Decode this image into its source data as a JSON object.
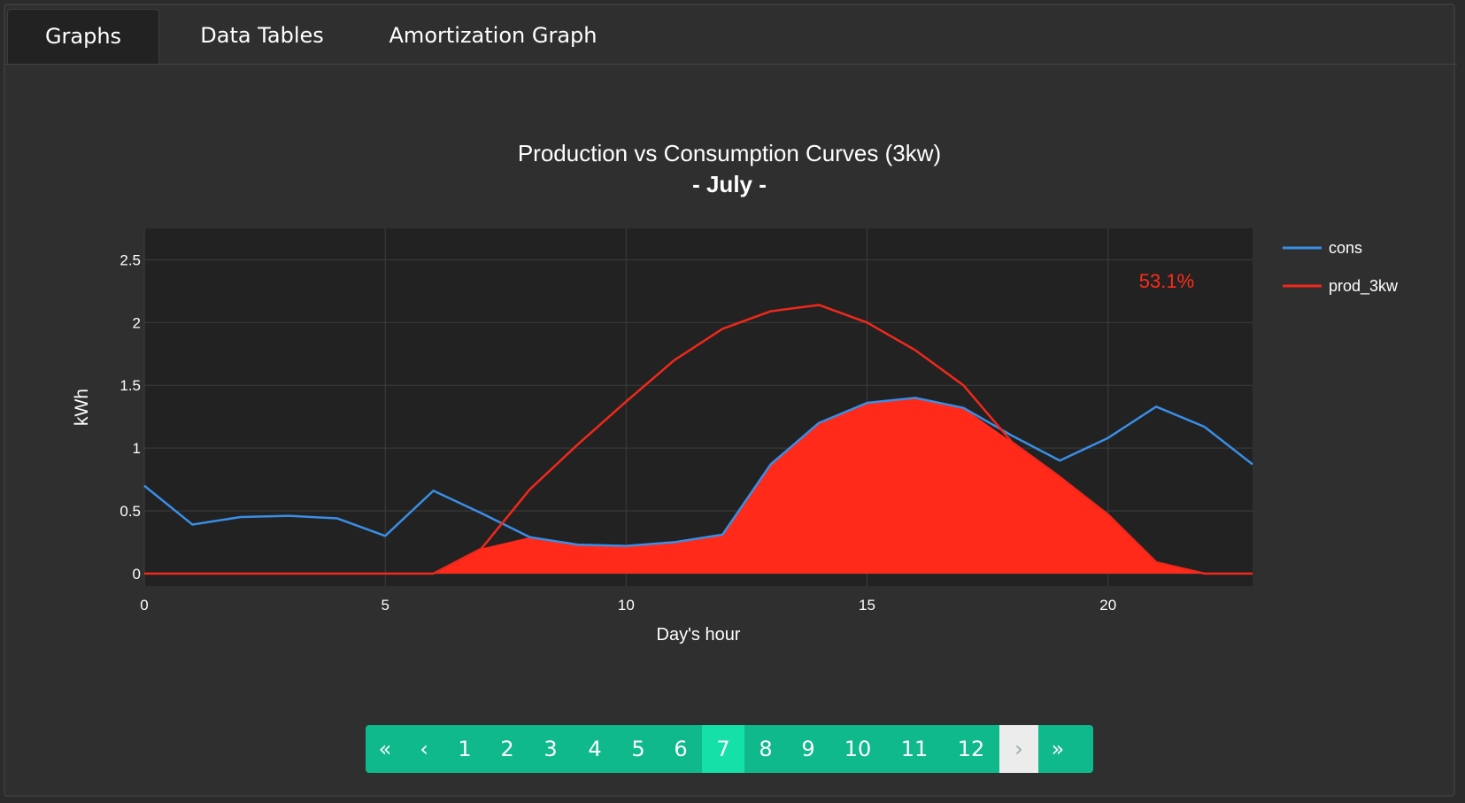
{
  "tabs": [
    {
      "label": "Graphs",
      "active": true
    },
    {
      "label": "Data Tables",
      "active": false
    },
    {
      "label": "Amortization Graph",
      "active": false
    }
  ],
  "chart_data": {
    "type": "line",
    "title": "Production vs Consumption Curves (3kw)",
    "subtitle": "- July -",
    "xlabel": "Day's hour",
    "ylabel": "kWh",
    "xlim": [
      0,
      23
    ],
    "ylim": [
      -0.1,
      2.75
    ],
    "xticks": [
      0,
      5,
      10,
      15,
      20
    ],
    "yticks": [
      0,
      0.5,
      1,
      1.5,
      2,
      2.5
    ],
    "ytick_labels": [
      "0",
      "0.5",
      "1",
      "1.5",
      "2",
      "2.5"
    ],
    "grid": true,
    "legend_position": "right",
    "annotation": {
      "text": "53.1%",
      "color": "#ff2a1a"
    },
    "x": [
      0,
      1,
      2,
      3,
      4,
      5,
      6,
      7,
      8,
      9,
      10,
      11,
      12,
      13,
      14,
      15,
      16,
      17,
      18,
      19,
      20,
      21,
      22,
      23
    ],
    "series": [
      {
        "name": "cons",
        "color": "#3a8ee6",
        "values": [
          0.7,
          0.39,
          0.45,
          0.46,
          0.44,
          0.3,
          0.66,
          0.48,
          0.29,
          0.23,
          0.22,
          0.25,
          0.31,
          0.87,
          1.2,
          1.36,
          1.4,
          1.32,
          1.1,
          0.9,
          1.08,
          1.33,
          1.17,
          0.87
        ]
      },
      {
        "name": "prod_3kw",
        "color": "#f0281b",
        "values": [
          0,
          0,
          0,
          0,
          0,
          0,
          0,
          0.2,
          0.67,
          1.03,
          1.37,
          1.7,
          1.95,
          2.09,
          2.14,
          2.0,
          1.78,
          1.5,
          1.05,
          0.77,
          0.47,
          0.09,
          0,
          0
        ]
      }
    ],
    "self_consumption_fill": {
      "color": "#ff2a1a",
      "values": [
        0,
        0,
        0,
        0,
        0,
        0,
        0,
        0.2,
        0.29,
        0.23,
        0.22,
        0.25,
        0.31,
        0.87,
        1.2,
        1.36,
        1.4,
        1.32,
        1.05,
        0.77,
        0.47,
        0.09,
        0,
        0
      ]
    }
  },
  "pagination": {
    "items": [
      {
        "label": "«",
        "name": "first-page-button",
        "state": "normal"
      },
      {
        "label": "‹",
        "name": "prev-page-button",
        "state": "normal"
      },
      {
        "label": "1",
        "name": "page-1-button",
        "state": "normal"
      },
      {
        "label": "2",
        "name": "page-2-button",
        "state": "normal"
      },
      {
        "label": "3",
        "name": "page-3-button",
        "state": "normal"
      },
      {
        "label": "4",
        "name": "page-4-button",
        "state": "normal"
      },
      {
        "label": "5",
        "name": "page-5-button",
        "state": "normal"
      },
      {
        "label": "6",
        "name": "page-6-button",
        "state": "normal"
      },
      {
        "label": "7",
        "name": "page-7-button",
        "state": "active"
      },
      {
        "label": "8",
        "name": "page-8-button",
        "state": "normal"
      },
      {
        "label": "9",
        "name": "page-9-button",
        "state": "normal"
      },
      {
        "label": "10",
        "name": "page-10-button",
        "state": "normal"
      },
      {
        "label": "11",
        "name": "page-11-button",
        "state": "normal"
      },
      {
        "label": "12",
        "name": "page-12-button",
        "state": "normal"
      },
      {
        "label": "›",
        "name": "next-page-button",
        "state": "disabled"
      },
      {
        "label": "»",
        "name": "last-page-button",
        "state": "normal"
      }
    ]
  }
}
